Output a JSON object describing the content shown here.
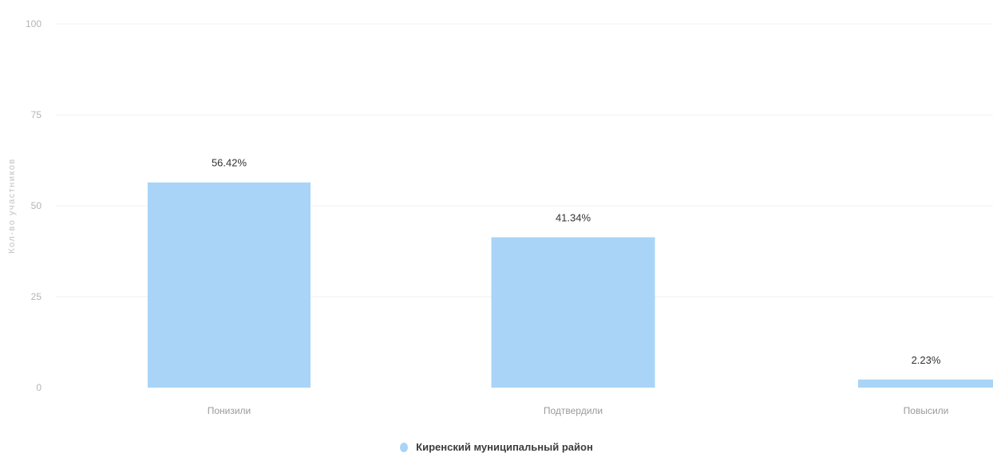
{
  "chart_data": {
    "type": "bar",
    "categories": [
      "Понизили",
      "Подтвердили",
      "Повысили"
    ],
    "series": [
      {
        "name": "Киренский муниципальный район",
        "values": [
          56.42,
          41.34,
          2.23
        ],
        "data_labels": [
          "56.42%",
          "41.34%",
          "2.23%"
        ]
      }
    ],
    "ylabel": "Кол-во участников",
    "xlabel": "",
    "ylim": [
      0,
      100
    ],
    "yticks": [
      0,
      25,
      50,
      75,
      100
    ],
    "grid": true,
    "legend_position": "bottom-center",
    "colors": {
      "bar": "#a9d4f7",
      "bar_stroke": "#9ccaf2",
      "legend_marker": "#a9d4f7"
    }
  }
}
